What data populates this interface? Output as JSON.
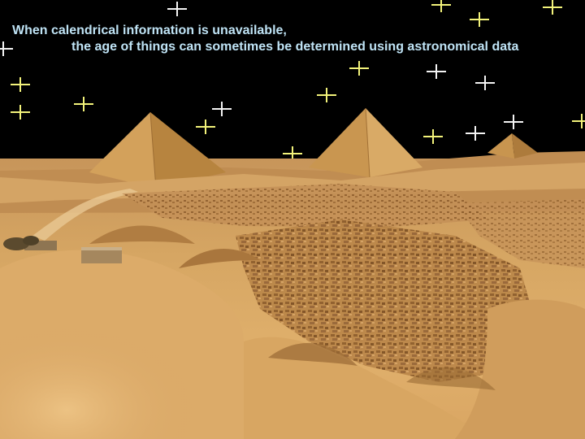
{
  "caption": {
    "line1": "When calendrical information is unavailable,",
    "line2": "the age of things can sometimes be determined using astronomical data"
  },
  "colors": {
    "sky": "#000000",
    "star_yellow": "#f2f27a",
    "star_white": "#f4f4f4",
    "caption_text": "#bfe3f5",
    "sand_light": "#e2b46e",
    "sand_mid": "#c8924e",
    "sand_dark": "#8f5e2c",
    "pyramid_lit": "#d8a75f",
    "pyramid_shade": "#a97838"
  },
  "scene": {
    "pyramid_count": 3,
    "star_count": 19
  }
}
